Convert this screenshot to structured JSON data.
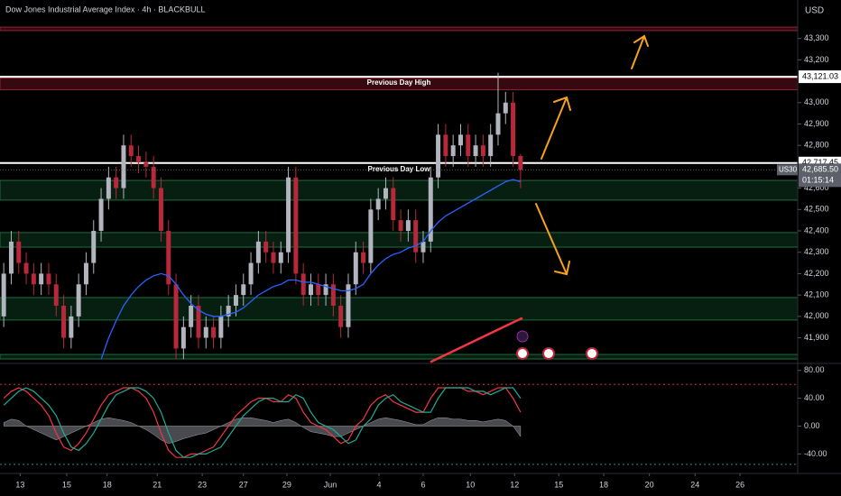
{
  "header": {
    "title": "Dow Jones Industrial Average Index · 4h · BLACKBULL",
    "currency": "USD"
  },
  "chart_data": {
    "type": "candlestick",
    "open": [
      42000,
      42200,
      42350,
      42250,
      42200,
      42150,
      42200,
      42150,
      42050,
      41900,
      42000,
      42150,
      42250,
      42400,
      42550,
      42650,
      42600,
      42800,
      42750,
      42720,
      42700,
      42600,
      42400,
      42150,
      41850,
      41950,
      42050,
      41900,
      41950,
      41900,
      42000,
      42050,
      42100,
      42150,
      42250,
      42350,
      42300,
      42250,
      42300,
      42650,
      42200,
      42100,
      42150,
      42100,
      42150,
      42050,
      41950,
      42150,
      42300,
      42250,
      42500,
      42550,
      42600,
      42450,
      42400,
      42450,
      42300,
      42350,
      42650,
      42850,
      42750,
      42800,
      42850,
      42750,
      42800,
      42750,
      42850,
      42950,
      43000,
      42750
    ],
    "high": [
      42250,
      42400,
      42400,
      42300,
      42250,
      42250,
      42250,
      42200,
      42100,
      42050,
      42200,
      42300,
      42450,
      42600,
      42700,
      42700,
      42850,
      42850,
      42800,
      42770,
      42750,
      42650,
      42450,
      42200,
      42000,
      42100,
      42100,
      42000,
      42000,
      42050,
      42100,
      42150,
      42200,
      42300,
      42400,
      42400,
      42350,
      42350,
      42700,
      42700,
      42250,
      42200,
      42200,
      42200,
      42200,
      42100,
      42200,
      42350,
      42350,
      42550,
      42600,
      42650,
      42650,
      42500,
      42500,
      42500,
      42400,
      42700,
      42900,
      42900,
      42850,
      42900,
      42900,
      42850,
      42850,
      42900,
      43140,
      43050,
      43050,
      42760
    ],
    "low": [
      41950,
      42150,
      42200,
      42150,
      42100,
      42100,
      42100,
      42000,
      41850,
      41850,
      41950,
      42100,
      42200,
      42350,
      42500,
      42550,
      42550,
      42700,
      42670,
      42650,
      42550,
      42350,
      42100,
      41800,
      41800,
      41900,
      41850,
      41850,
      41850,
      41850,
      41950,
      42000,
      42050,
      42100,
      42200,
      42250,
      42200,
      42200,
      42250,
      42150,
      42050,
      42050,
      42050,
      42050,
      42000,
      41900,
      41900,
      42100,
      42200,
      42200,
      42450,
      42500,
      42400,
      42350,
      42350,
      42250,
      42250,
      42300,
      42600,
      42700,
      42700,
      42750,
      42700,
      42700,
      42700,
      42700,
      42800,
      42900,
      42700,
      42600
    ],
    "close": [
      42200,
      42350,
      42250,
      42200,
      42150,
      42200,
      42150,
      42050,
      41900,
      42000,
      42150,
      42250,
      42400,
      42550,
      42650,
      42600,
      42800,
      42750,
      42720,
      42700,
      42600,
      42400,
      42150,
      41850,
      41950,
      42050,
      41900,
      41950,
      41900,
      42000,
      42050,
      42100,
      42150,
      42250,
      42350,
      42300,
      42250,
      42300,
      42650,
      42200,
      42100,
      42150,
      42100,
      42150,
      42050,
      41950,
      42150,
      42300,
      42250,
      42500,
      42550,
      42600,
      42450,
      42400,
      42450,
      42300,
      42350,
      42650,
      42850,
      42750,
      42800,
      42850,
      42750,
      42800,
      42750,
      42850,
      42950,
      43000,
      42750,
      42685.5
    ],
    "up_color": "#b2b5be",
    "down_color": "#b7283a",
    "ma": {
      "color": "#2962ff",
      "values": [
        null,
        null,
        null,
        null,
        null,
        null,
        null,
        null,
        null,
        null,
        null,
        null,
        null,
        41800,
        41900,
        41980,
        42050,
        42100,
        42140,
        42170,
        42190,
        42200,
        42190,
        42150,
        42100,
        42060,
        42030,
        42010,
        42000,
        42000,
        42010,
        42020,
        42040,
        42070,
        42100,
        42120,
        42140,
        42150,
        42170,
        42170,
        42160,
        42160,
        42150,
        42140,
        42130,
        42120,
        42120,
        42130,
        42150,
        42200,
        42240,
        42270,
        42290,
        42300,
        42320,
        42330,
        42350,
        42400,
        42440,
        42470,
        42490,
        42510,
        42530,
        42550,
        42570,
        42590,
        42610,
        42630,
        42640,
        42630
      ]
    },
    "xlim": [
      -0.5,
      106
    ],
    "xticks": [
      {
        "value": 2.2,
        "label": "13"
      },
      {
        "value": 8.4,
        "label": "15"
      },
      {
        "value": 13.8,
        "label": "18"
      },
      {
        "value": 20.5,
        "label": "21"
      },
      {
        "value": 26.5,
        "label": "23"
      },
      {
        "value": 32,
        "label": "27"
      },
      {
        "value": 37.8,
        "label": "29"
      },
      {
        "value": 43.6,
        "label": "Jun"
      },
      {
        "value": 50.1,
        "label": "4"
      },
      {
        "value": 56,
        "label": "6"
      },
      {
        "value": 62.3,
        "label": "10"
      },
      {
        "value": 68.2,
        "label": "12"
      },
      {
        "value": 74.1,
        "label": "15"
      },
      {
        "value": 80.1,
        "label": "18"
      },
      {
        "value": 86.2,
        "label": "20"
      },
      {
        "value": 92.3,
        "label": "24"
      },
      {
        "value": 98.3,
        "label": "26"
      }
    ],
    "ylim": [
      41780,
      43480
    ],
    "yticks": [
      {
        "value": 41900,
        "label": "41,900"
      },
      {
        "value": 42000,
        "label": "42,000"
      },
      {
        "value": 42100,
        "label": "42,100"
      },
      {
        "value": 42200,
        "label": "42,200"
      },
      {
        "value": 42300,
        "label": "42,300"
      },
      {
        "value": 42400,
        "label": "42,400"
      },
      {
        "value": 42500,
        "label": "42,500"
      },
      {
        "value": 42600,
        "label": "42,600"
      },
      {
        "value": 42800,
        "label": "42,800"
      },
      {
        "value": 42900,
        "label": "42,900"
      },
      {
        "value": 43000,
        "label": "43,000"
      },
      {
        "value": 43200,
        "label": "43,200"
      },
      {
        "value": 43300,
        "label": "43,300"
      }
    ],
    "levels": [
      {
        "value": 43121.03,
        "label": "43,121.03",
        "name": "Previous Day High"
      },
      {
        "value": 42717.45,
        "label": "42,717.45",
        "name": "Previous Day Low"
      }
    ],
    "red_bands": [
      [
        43353,
        43337
      ],
      [
        43115,
        43060
      ]
    ],
    "zones": [
      [
        42636,
        42544
      ],
      [
        42392,
        42324
      ],
      [
        42088,
        41983
      ],
      [
        41822,
        41801
      ]
    ],
    "price_label": {
      "symbol": "US30",
      "value": 42685.5,
      "label": "42,685.50",
      "countdown": "01:15:14"
    },
    "oscillator": {
      "ylim": [
        -68,
        90
      ],
      "yticks": [
        {
          "value": 80,
          "label": "80.00"
        },
        {
          "value": 40,
          "label": "40.00"
        },
        {
          "value": 0,
          "label": "0.00"
        },
        {
          "value": -40,
          "label": "-40.00"
        }
      ],
      "levels": [
        60,
        -55
      ],
      "series": [
        {
          "color": "#f23645",
          "values": [
            40,
            50,
            55,
            50,
            40,
            30,
            15,
            -10,
            -30,
            -35,
            -25,
            -10,
            10,
            30,
            45,
            50,
            55,
            55,
            50,
            40,
            20,
            -10,
            -35,
            -45,
            -45,
            -40,
            -40,
            -35,
            -30,
            -15,
            0,
            15,
            25,
            35,
            40,
            40,
            35,
            35,
            45,
            40,
            20,
            5,
            0,
            -5,
            -15,
            -25,
            -20,
            0,
            10,
            30,
            40,
            45,
            35,
            30,
            25,
            20,
            20,
            40,
            55,
            55,
            55,
            55,
            50,
            50,
            45,
            50,
            55,
            55,
            40,
            20
          ]
        },
        {
          "color": "#22ab94",
          "values": [
            30,
            40,
            50,
            55,
            50,
            40,
            30,
            15,
            -10,
            -30,
            -35,
            -25,
            -10,
            10,
            30,
            45,
            50,
            55,
            55,
            50,
            40,
            20,
            -10,
            -35,
            -45,
            -45,
            -40,
            -40,
            -35,
            -30,
            -15,
            0,
            15,
            25,
            35,
            40,
            40,
            35,
            35,
            45,
            40,
            20,
            5,
            0,
            -5,
            -15,
            -25,
            -20,
            0,
            10,
            30,
            40,
            45,
            35,
            30,
            25,
            20,
            20,
            40,
            55,
            55,
            55,
            55,
            50,
            50,
            45,
            50,
            55,
            55,
            40
          ]
        }
      ],
      "histogram": {
        "color": "#787b86",
        "values": [
          5,
          10,
          8,
          0,
          -5,
          -10,
          -15,
          -20,
          -15,
          -10,
          -5,
          0,
          5,
          10,
          12,
          10,
          8,
          5,
          0,
          -5,
          -12,
          -20,
          -25,
          -22,
          -18,
          -15,
          -12,
          -10,
          -5,
          0,
          5,
          10,
          12,
          12,
          10,
          8,
          5,
          8,
          10,
          5,
          -2,
          -8,
          -10,
          -12,
          -15,
          -15,
          -10,
          -5,
          0,
          5,
          10,
          12,
          10,
          8,
          5,
          2,
          2,
          8,
          12,
          12,
          10,
          10,
          8,
          8,
          6,
          8,
          10,
          8,
          0,
          -15
        ]
      }
    }
  }
}
